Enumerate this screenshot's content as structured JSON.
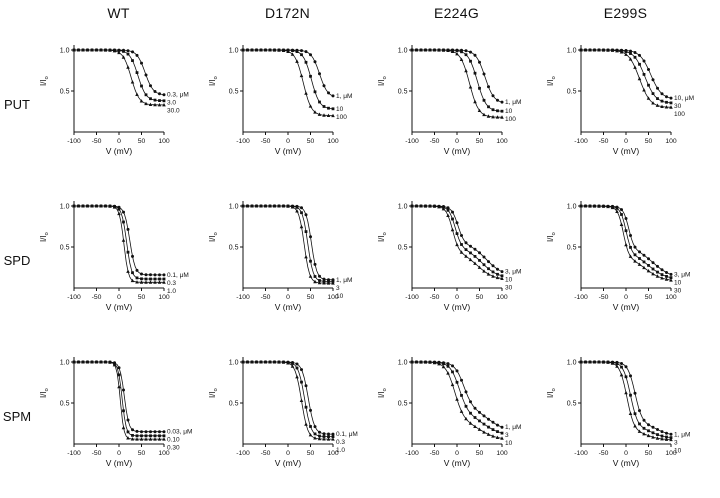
{
  "figure": {
    "columns": [
      "WT",
      "D172N",
      "E224G",
      "E299S"
    ],
    "rows": [
      "PUT",
      "SPD",
      "SPM"
    ]
  },
  "axis": {
    "xlabel": "V (mV)",
    "ylabel_main": "I/I",
    "ylabel_sub": "o",
    "xlim": [
      -100,
      100
    ],
    "ylim": [
      0,
      1.05
    ],
    "xticks": [
      -100,
      -50,
      0,
      50,
      100
    ],
    "yticks": [
      1.0,
      0.5
    ],
    "line_color": "#111111"
  },
  "chart_data": [
    {
      "row": "PUT",
      "col": "WT",
      "type": "line",
      "series": [
        {
          "label": "0.3, μM",
          "marker": "circle",
          "residual": 0.45,
          "components": [
            {
              "amp": 0.55,
              "v50": 58,
              "k": 9
            }
          ]
        },
        {
          "label": "3.0",
          "marker": "square",
          "residual": 0.38,
          "components": [
            {
              "amp": 0.62,
              "v50": 42,
              "k": 9
            }
          ]
        },
        {
          "label": "30.0",
          "marker": "triangle",
          "residual": 0.33,
          "components": [
            {
              "amp": 0.67,
              "v50": 27,
              "k": 9
            }
          ]
        }
      ]
    },
    {
      "row": "PUT",
      "col": "D172N",
      "type": "line",
      "series": [
        {
          "label": "1, μM",
          "marker": "circle",
          "residual": 0.42,
          "components": [
            {
              "amp": 0.58,
              "v50": 70,
              "k": 9
            }
          ]
        },
        {
          "label": "10",
          "marker": "square",
          "residual": 0.28,
          "components": [
            {
              "amp": 0.72,
              "v50": 52,
              "k": 9
            }
          ]
        },
        {
          "label": "100",
          "marker": "triangle",
          "residual": 0.2,
          "components": [
            {
              "amp": 0.8,
              "v50": 34,
              "k": 9
            }
          ]
        }
      ]
    },
    {
      "row": "PUT",
      "col": "E224G",
      "type": "line",
      "series": [
        {
          "label": "1, μM",
          "marker": "circle",
          "residual": 0.35,
          "components": [
            {
              "amp": 0.65,
              "v50": 62,
              "k": 10
            }
          ]
        },
        {
          "label": "10",
          "marker": "square",
          "residual": 0.25,
          "components": [
            {
              "amp": 0.75,
              "v50": 45,
              "k": 10
            }
          ]
        },
        {
          "label": "100",
          "marker": "triangle",
          "residual": 0.18,
          "components": [
            {
              "amp": 0.82,
              "v50": 28,
              "k": 10
            }
          ]
        }
      ]
    },
    {
      "row": "PUT",
      "col": "E299S",
      "type": "line",
      "series": [
        {
          "label": "10, μM",
          "marker": "circle",
          "residual": 0.4,
          "components": [
            {
              "amp": 0.6,
              "v50": 55,
              "k": 12
            }
          ]
        },
        {
          "label": "30",
          "marker": "square",
          "residual": 0.35,
          "components": [
            {
              "amp": 0.65,
              "v50": 42,
              "k": 12
            }
          ]
        },
        {
          "label": "100",
          "marker": "triangle",
          "residual": 0.3,
          "components": [
            {
              "amp": 0.7,
              "v50": 30,
              "k": 12
            }
          ]
        }
      ]
    },
    {
      "row": "SPD",
      "col": "WT",
      "type": "line",
      "series": [
        {
          "label": "0.1, μM",
          "marker": "circle",
          "residual": 0.16,
          "components": [
            {
              "amp": 0.84,
              "v50": 24,
              "k": 6
            }
          ]
        },
        {
          "label": "0.3",
          "marker": "square",
          "residual": 0.11,
          "components": [
            {
              "amp": 0.89,
              "v50": 17,
              "k": 5.5
            }
          ]
        },
        {
          "label": "1.0",
          "marker": "triangle",
          "residual": 0.07,
          "components": [
            {
              "amp": 0.93,
              "v50": 11,
              "k": 5
            }
          ]
        }
      ]
    },
    {
      "row": "SPD",
      "col": "D172N",
      "type": "line",
      "series": [
        {
          "label": "1, μM",
          "marker": "circle",
          "residual": 0.1,
          "components": [
            {
              "amp": 0.9,
              "v50": 52,
              "k": 6
            }
          ]
        },
        {
          "label": "3",
          "marker": "square",
          "residual": 0.08,
          "components": [
            {
              "amp": 0.92,
              "v50": 44,
              "k": 6
            }
          ]
        },
        {
          "label": "10",
          "marker": "triangle",
          "residual": 0.06,
          "components": [
            {
              "amp": 0.94,
              "v50": 36,
              "k": 6
            }
          ]
        }
      ]
    },
    {
      "row": "SPD",
      "col": "E224G",
      "type": "line",
      "series": [
        {
          "label": "3, μM",
          "marker": "circle",
          "residual": 0.15,
          "components": [
            {
              "amp": 0.45,
              "v50": 2,
              "k": 7
            },
            {
              "amp": 0.4,
              "v50": 65,
              "k": 18
            }
          ]
        },
        {
          "label": "10",
          "marker": "square",
          "residual": 0.12,
          "components": [
            {
              "amp": 0.5,
              "v50": -4,
              "k": 7
            },
            {
              "amp": 0.38,
              "v50": 55,
              "k": 18
            }
          ]
        },
        {
          "label": "30",
          "marker": "triangle",
          "residual": 0.1,
          "components": [
            {
              "amp": 0.55,
              "v50": -10,
              "k": 7
            },
            {
              "amp": 0.35,
              "v50": 45,
              "k": 18
            }
          ]
        }
      ]
    },
    {
      "row": "SPD",
      "col": "E299S",
      "type": "line",
      "series": [
        {
          "label": "3, μM",
          "marker": "circle",
          "residual": 0.12,
          "components": [
            {
              "amp": 0.5,
              "v50": 6,
              "k": 6
            },
            {
              "amp": 0.38,
              "v50": 60,
              "k": 20
            }
          ]
        },
        {
          "label": "10",
          "marker": "square",
          "residual": 0.1,
          "components": [
            {
              "amp": 0.55,
              "v50": 0,
              "k": 6
            },
            {
              "amp": 0.35,
              "v50": 50,
              "k": 20
            }
          ]
        },
        {
          "label": "30",
          "marker": "triangle",
          "residual": 0.08,
          "components": [
            {
              "amp": 0.6,
              "v50": -6,
              "k": 6
            },
            {
              "amp": 0.32,
              "v50": 42,
              "k": 20
            }
          ]
        }
      ]
    },
    {
      "row": "SPM",
      "col": "WT",
      "type": "line",
      "series": [
        {
          "label": "0.03, μM",
          "marker": "circle",
          "residual": 0.15,
          "components": [
            {
              "amp": 0.85,
              "v50": 12,
              "k": 5
            }
          ]
        },
        {
          "label": "0.10",
          "marker": "square",
          "residual": 0.1,
          "components": [
            {
              "amp": 0.9,
              "v50": 7,
              "k": 4.5
            }
          ]
        },
        {
          "label": "0.30",
          "marker": "triangle",
          "residual": 0.06,
          "components": [
            {
              "amp": 0.94,
              "v50": 3,
              "k": 4
            }
          ]
        }
      ]
    },
    {
      "row": "SPM",
      "col": "D172N",
      "type": "line",
      "series": [
        {
          "label": "0.1, μM",
          "marker": "circle",
          "residual": 0.12,
          "components": [
            {
              "amp": 0.88,
              "v50": 45,
              "k": 7
            }
          ]
        },
        {
          "label": "0.3",
          "marker": "square",
          "residual": 0.09,
          "components": [
            {
              "amp": 0.91,
              "v50": 37,
              "k": 7
            }
          ]
        },
        {
          "label": "1.0",
          "marker": "triangle",
          "residual": 0.06,
          "components": [
            {
              "amp": 0.94,
              "v50": 30,
              "k": 7
            }
          ]
        }
      ]
    },
    {
      "row": "SPM",
      "col": "E224G",
      "type": "line",
      "series": [
        {
          "label": "1, μM",
          "marker": "circle",
          "residual": 0.15,
          "components": [
            {
              "amp": 0.55,
              "v50": 15,
              "k": 10
            },
            {
              "amp": 0.3,
              "v50": 70,
              "k": 20
            }
          ]
        },
        {
          "label": "3",
          "marker": "square",
          "residual": 0.1,
          "components": [
            {
              "amp": 0.62,
              "v50": 5,
              "k": 10
            },
            {
              "amp": 0.28,
              "v50": 60,
              "k": 20
            }
          ]
        },
        {
          "label": "10",
          "marker": "triangle",
          "residual": 0.05,
          "components": [
            {
              "amp": 0.7,
              "v50": -5,
              "k": 10
            },
            {
              "amp": 0.25,
              "v50": 50,
              "k": 20
            }
          ]
        }
      ]
    },
    {
      "row": "SPM",
      "col": "E299S",
      "type": "line",
      "series": [
        {
          "label": "1, μM",
          "marker": "circle",
          "residual": 0.1,
          "components": [
            {
              "amp": 0.75,
              "v50": 20,
              "k": 8
            },
            {
              "amp": 0.15,
              "v50": 70,
              "k": 15
            }
          ]
        },
        {
          "label": "3",
          "marker": "square",
          "residual": 0.07,
          "components": [
            {
              "amp": 0.8,
              "v50": 10,
              "k": 8
            },
            {
              "amp": 0.13,
              "v50": 60,
              "k": 15
            }
          ]
        },
        {
          "label": "10",
          "marker": "triangle",
          "residual": 0.05,
          "components": [
            {
              "amp": 0.85,
              "v50": 2,
              "k": 8
            },
            {
              "amp": 0.1,
              "v50": 50,
              "k": 15
            }
          ]
        }
      ]
    }
  ]
}
